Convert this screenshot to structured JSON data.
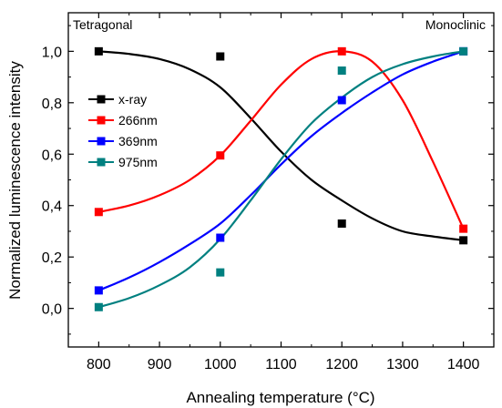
{
  "chart_data": {
    "type": "scatter",
    "xlabel": "Annealing temperature (°C)",
    "ylabel": "Normalized luminescence intensity",
    "xlim": [
      750,
      1450
    ],
    "ylim": [
      -0.15,
      1.15
    ],
    "xticks": [
      800,
      900,
      1000,
      1100,
      1200,
      1300,
      1400
    ],
    "yticks": [
      0.0,
      0.2,
      0.4,
      0.6,
      0.8,
      1.0
    ],
    "xtick_labels": [
      "800",
      "900",
      "1000",
      "1100",
      "1200",
      "1300",
      "1400"
    ],
    "ytick_labels": [
      "0,0",
      "0,2",
      "0,4",
      "0,6",
      "0,8",
      "1,0"
    ],
    "grid": false,
    "legend_position": "center-left",
    "annotations": [
      {
        "text": "Tetragonal",
        "position": "top-left"
      },
      {
        "text": "Monoclinic",
        "position": "top-right"
      }
    ],
    "series": [
      {
        "name": "x-ray",
        "color": "#000000",
        "x": [
          800,
          1000,
          1200,
          1400
        ],
        "y": [
          1.0,
          0.98,
          0.33,
          0.265
        ],
        "fit": {
          "x": [
            800,
            850,
            900,
            950,
            1000,
            1050,
            1100,
            1150,
            1200,
            1250,
            1300,
            1350,
            1400
          ],
          "y": [
            1.0,
            0.99,
            0.97,
            0.93,
            0.86,
            0.74,
            0.61,
            0.5,
            0.42,
            0.35,
            0.3,
            0.28,
            0.265
          ]
        }
      },
      {
        "name": "266nm",
        "color": "#ff0000",
        "x": [
          800,
          1000,
          1200,
          1400
        ],
        "y": [
          0.375,
          0.595,
          1.0,
          0.31
        ],
        "fit": {
          "x": [
            800,
            850,
            900,
            950,
            1000,
            1050,
            1100,
            1150,
            1200,
            1250,
            1300,
            1350,
            1400
          ],
          "y": [
            0.375,
            0.4,
            0.44,
            0.5,
            0.595,
            0.73,
            0.87,
            0.97,
            1.0,
            0.96,
            0.81,
            0.57,
            0.31
          ]
        }
      },
      {
        "name": "369nm",
        "color": "#0000ff",
        "x": [
          800,
          1000,
          1200,
          1400
        ],
        "y": [
          0.07,
          0.275,
          0.81,
          1.0
        ],
        "fit": {
          "x": [
            800,
            850,
            900,
            950,
            1000,
            1050,
            1100,
            1150,
            1200,
            1250,
            1300,
            1350,
            1400
          ],
          "y": [
            0.07,
            0.12,
            0.18,
            0.25,
            0.33,
            0.44,
            0.56,
            0.67,
            0.76,
            0.84,
            0.91,
            0.96,
            1.0
          ]
        }
      },
      {
        "name": "975nm",
        "color": "#008080",
        "x": [
          800,
          1000,
          1200,
          1400
        ],
        "y": [
          0.005,
          0.14,
          0.925,
          1.0
        ],
        "fit": {
          "x": [
            800,
            850,
            900,
            950,
            1000,
            1050,
            1100,
            1150,
            1200,
            1250,
            1300,
            1350,
            1400
          ],
          "y": [
            0.005,
            0.04,
            0.09,
            0.16,
            0.27,
            0.42,
            0.58,
            0.72,
            0.82,
            0.9,
            0.95,
            0.98,
            1.0
          ]
        }
      }
    ]
  }
}
